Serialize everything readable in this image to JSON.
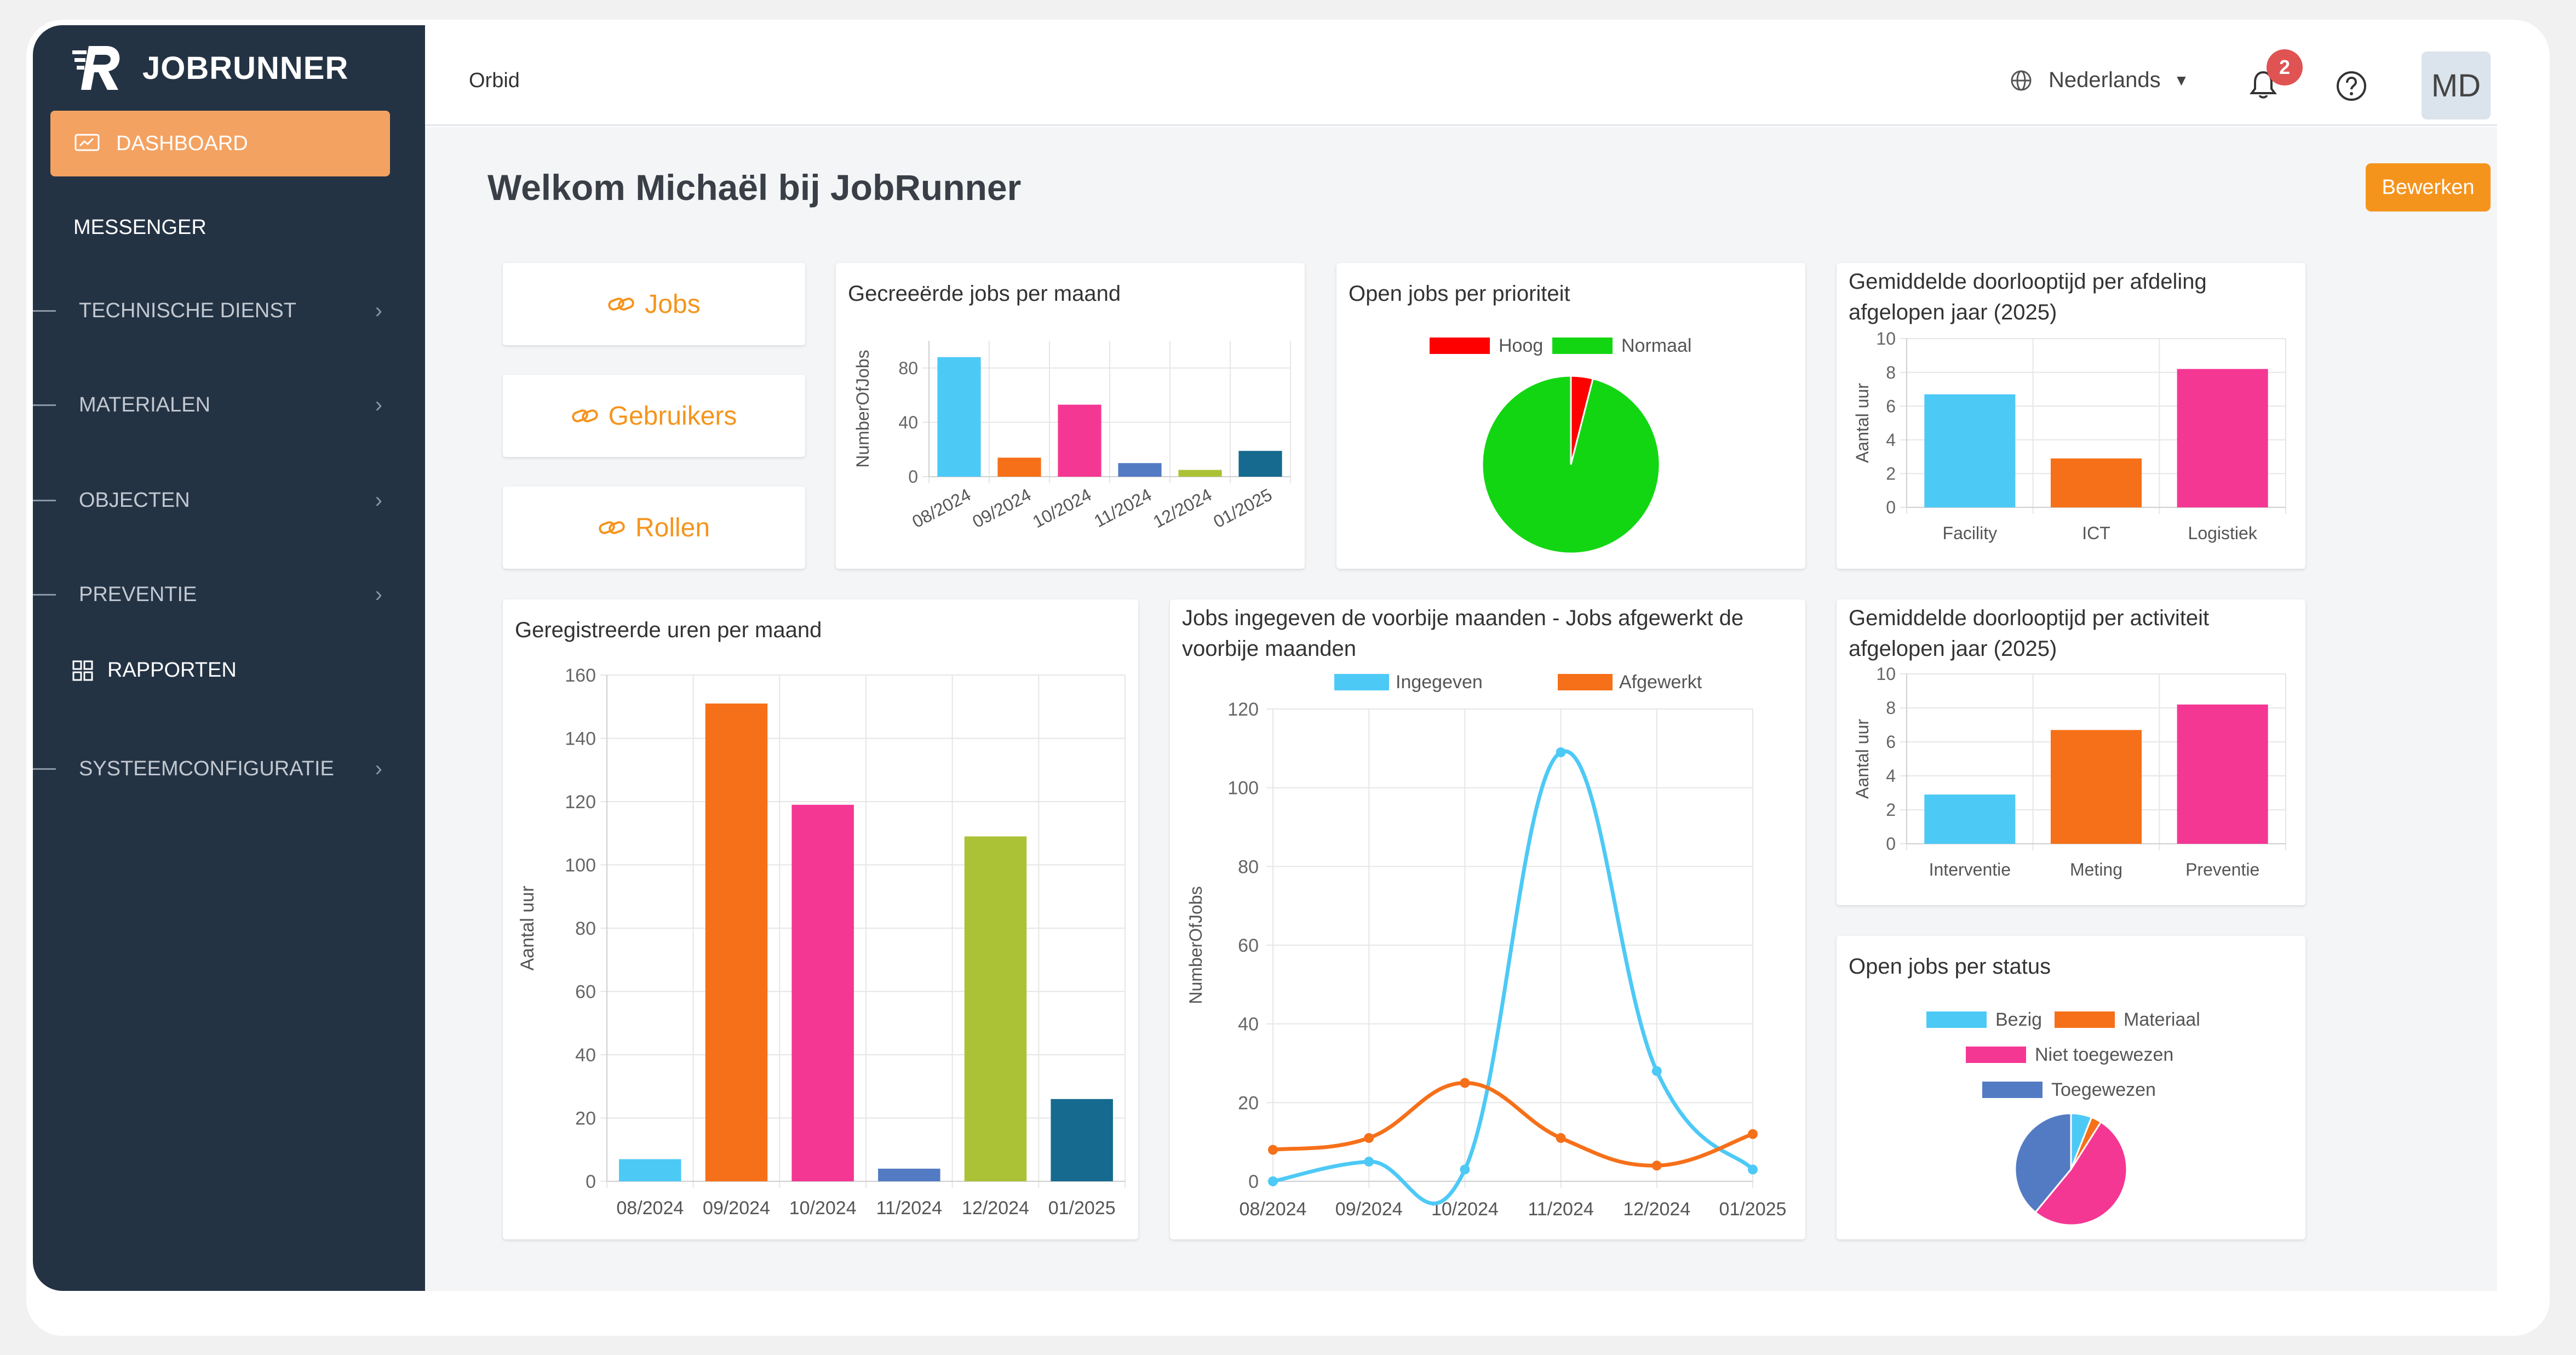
{
  "app": {
    "brand": "JOBRUNNER",
    "breadcrumb": "Orbid"
  },
  "colors": {
    "accent": "#f5941d",
    "sidebar": "#243344",
    "active_nav": "#f4a261"
  },
  "sidebar": {
    "active": "DASHBOARD",
    "messenger": "MESSENGER",
    "items": [
      {
        "label": "TECHNISCHE DIENST"
      },
      {
        "label": "MATERIALEN"
      },
      {
        "label": "OBJECTEN"
      },
      {
        "label": "PREVENTIE"
      }
    ],
    "rapporten": "RAPPORTEN",
    "systeem": "SYSTEEMCONFIGURATIE"
  },
  "header": {
    "language": "Nederlands",
    "notifications": "2",
    "avatar": "MD"
  },
  "page": {
    "welcome": "Welkom Michaël bij JobRunner",
    "edit_button": "Bewerken"
  },
  "links": {
    "jobs": "Jobs",
    "users": "Gebruikers",
    "roles": "Rollen"
  },
  "chart_data": [
    {
      "id": "created",
      "type": "bar",
      "title": "Gecreeërde jobs per maand",
      "ylabel": "NumberOfJobs",
      "categories": [
        "08/2024",
        "09/2024",
        "10/2024",
        "11/2024",
        "12/2024",
        "01/2025"
      ],
      "values": [
        88,
        14,
        53,
        10,
        5,
        19
      ],
      "colors": [
        "#4dc9f6",
        "#f67019",
        "#f53794",
        "#537bc4",
        "#acc236",
        "#166a8f"
      ],
      "ylim": [
        0,
        100
      ],
      "yticks": [
        0,
        40,
        80
      ]
    },
    {
      "id": "priority",
      "type": "pie",
      "title": "Open jobs per prioriteit",
      "labels": [
        "Hoog",
        "Normaal"
      ],
      "values": [
        4,
        96
      ],
      "colors": [
        "#ff0000",
        "#13d613"
      ]
    },
    {
      "id": "dept",
      "type": "bar",
      "title": "Gemiddelde doorlooptijd per afdeling afgelopen jaar (2025)",
      "ylabel": "Aantal uur",
      "categories": [
        "Facility",
        "ICT",
        "Logistiek"
      ],
      "values": [
        6.7,
        2.9,
        8.2
      ],
      "colors": [
        "#4dc9f6",
        "#f67019",
        "#f53794"
      ],
      "ylim": [
        0,
        10
      ],
      "yticks": [
        0,
        2,
        4,
        6,
        8,
        10
      ]
    },
    {
      "id": "hours",
      "type": "bar",
      "title": "Geregistreerde uren per maand",
      "ylabel": "Aantal uur",
      "categories": [
        "08/2024",
        "09/2024",
        "10/2024",
        "11/2024",
        "12/2024",
        "01/2025"
      ],
      "values": [
        7,
        151,
        119,
        4,
        109,
        26
      ],
      "colors": [
        "#4dc9f6",
        "#f67019",
        "#f53794",
        "#537bc4",
        "#acc236",
        "#166a8f"
      ],
      "ylim": [
        0,
        160
      ],
      "yticks": [
        0,
        20,
        40,
        60,
        80,
        100,
        120,
        140,
        160
      ]
    },
    {
      "id": "inout",
      "type": "line",
      "title": "Jobs ingegeven de voorbije maanden - Jobs afgewerkt de voorbije maanden",
      "ylabel": "NumberOfJobs",
      "categories": [
        "08/2024",
        "09/2024",
        "10/2024",
        "11/2024",
        "12/2024",
        "01/2025"
      ],
      "series": [
        {
          "name": "Ingegeven",
          "color": "#4dc9f6",
          "values": [
            0,
            5,
            3,
            109,
            28,
            3
          ]
        },
        {
          "name": "Afgewerkt",
          "color": "#f67019",
          "values": [
            8,
            11,
            25,
            11,
            4,
            12
          ]
        }
      ],
      "ylim": [
        0,
        120
      ],
      "yticks": [
        0,
        20,
        40,
        60,
        80,
        100,
        120
      ]
    },
    {
      "id": "activity",
      "type": "bar",
      "title": "Gemiddelde doorlooptijd per activiteit afgelopen jaar (2025)",
      "ylabel": "Aantal uur",
      "categories": [
        "Interventie",
        "Meting",
        "Preventie"
      ],
      "values": [
        2.9,
        6.7,
        8.2
      ],
      "colors": [
        "#4dc9f6",
        "#f67019",
        "#f53794"
      ],
      "ylim": [
        0,
        10
      ],
      "yticks": [
        0,
        2,
        4,
        6,
        8,
        10
      ]
    },
    {
      "id": "status",
      "type": "pie",
      "title": "Open jobs per status",
      "labels": [
        "Bezig",
        "Materiaal",
        "Niet toegewezen",
        "Toegewezen"
      ],
      "values": [
        6,
        3,
        52,
        39
      ],
      "colors": [
        "#4dc9f6",
        "#f67019",
        "#f53794",
        "#537bc4"
      ]
    }
  ]
}
